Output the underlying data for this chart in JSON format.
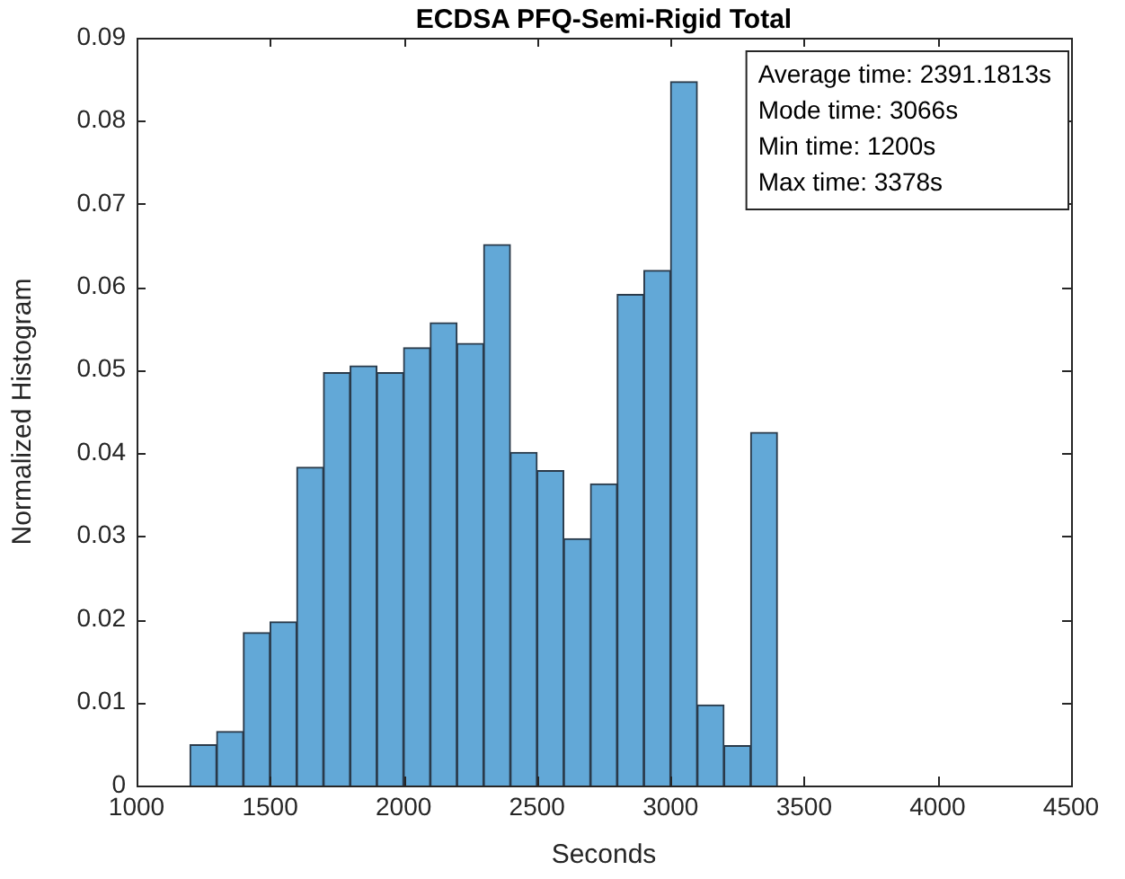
{
  "chart_data": {
    "type": "histogram",
    "title": "ECDSA PFQ-Semi-Rigid Total",
    "xlabel": "Seconds",
    "ylabel": "Normalized Histogram",
    "bins": [
      1200,
      1300,
      1400,
      1500,
      1600,
      1700,
      1800,
      1900,
      2000,
      2100,
      2200,
      2300,
      2400,
      2500,
      2600,
      2700,
      2800,
      2900,
      3000,
      3100,
      3200,
      3300,
      3400
    ],
    "values": [
      0.0049,
      0.0065,
      0.0184,
      0.0197,
      0.0383,
      0.0497,
      0.0505,
      0.0497,
      0.0527,
      0.0557,
      0.0532,
      0.0651,
      0.0401,
      0.0379,
      0.0297,
      0.0363,
      0.0591,
      0.062,
      0.0847,
      0.0097,
      0.0048,
      0.0425
    ],
    "color": "#62a8d7",
    "xlim": [
      1000,
      4500
    ],
    "xticks": [
      1000,
      1500,
      2000,
      2500,
      3000,
      3500,
      4000,
      4500
    ],
    "ylim": [
      0,
      0.09
    ],
    "yticks": [
      0,
      0.01,
      0.02,
      0.03,
      0.04,
      0.05,
      0.06,
      0.07,
      0.08,
      0.09
    ],
    "grid": false,
    "legend": false,
    "annotations": [
      "Average time: 2391.1813s",
      "Mode time: 3066s",
      "Min time: 1200s",
      "Max time: 3378s"
    ]
  }
}
